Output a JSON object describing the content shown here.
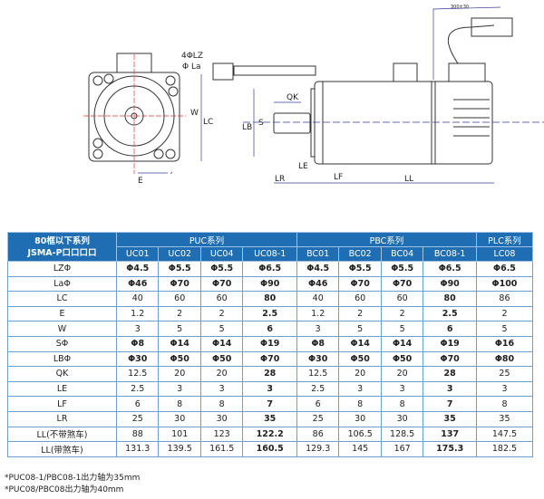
{
  "drawing": {
    "cable_length": "300±30",
    "labels": {
      "lz": "4ΦLZ",
      "la": "Φ La",
      "w": "W",
      "lc": "LC",
      "e": "E",
      "qk": "QK",
      "lb": "LB",
      "s": "S",
      "le": "LE",
      "lr": "LR",
      "lf": "LF",
      "ll": "LL"
    }
  },
  "table": {
    "corner": [
      "80框以下系列",
      "JSMA-P口口口口"
    ],
    "groups": [
      {
        "label": "PUC系列"
      },
      {
        "label": "PBC系列"
      },
      {
        "label": "PLC系列"
      }
    ],
    "models": [
      "UC01",
      "UC02",
      "UC04",
      "UC08-1",
      "BC01",
      "BC02",
      "BC04",
      "BC08-1",
      "LC08"
    ],
    "rows": [
      {
        "label": "LZΦ",
        "values": [
          "Φ4.5",
          "Φ5.5",
          "Φ5.5",
          "Φ6.5",
          "Φ4.5",
          "Φ5.5",
          "Φ5.5",
          "Φ6.5",
          "Φ6.5"
        ]
      },
      {
        "label": "LaΦ",
        "values": [
          "Φ46",
          "Φ70",
          "Φ70",
          "Φ90",
          "Φ46",
          "Φ70",
          "Φ70",
          "Φ90",
          "Φ100"
        ]
      },
      {
        "label": "LC",
        "values": [
          "40",
          "60",
          "60",
          "80",
          "40",
          "60",
          "60",
          "80",
          "86"
        ]
      },
      {
        "label": "E",
        "values": [
          "1.2",
          "2",
          "2",
          "2.5",
          "1.2",
          "2",
          "2",
          "2.5",
          "2"
        ]
      },
      {
        "label": "W",
        "values": [
          "3",
          "5",
          "5",
          "6",
          "3",
          "5",
          "5",
          "6",
          "5"
        ]
      },
      {
        "label": "SΦ",
        "values": [
          "Φ8",
          "Φ14",
          "Φ14",
          "Φ19",
          "Φ8",
          "Φ14",
          "Φ14",
          "Φ19",
          "Φ16"
        ]
      },
      {
        "label": "LBΦ",
        "values": [
          "Φ30",
          "Φ50",
          "Φ50",
          "Φ70",
          "Φ30",
          "Φ50",
          "Φ50",
          "Φ70",
          "Φ80"
        ]
      },
      {
        "label": "QK",
        "values": [
          "12.5",
          "20",
          "20",
          "28",
          "12.5",
          "20",
          "20",
          "28",
          "25"
        ]
      },
      {
        "label": "LE",
        "values": [
          "2.5",
          "3",
          "3",
          "3",
          "2.5",
          "3",
          "3",
          "3",
          "3"
        ]
      },
      {
        "label": "LF",
        "values": [
          "6",
          "8",
          "8",
          "7",
          "6",
          "8",
          "8",
          "7",
          "8"
        ]
      },
      {
        "label": "LR",
        "values": [
          "25",
          "30",
          "30",
          "35",
          "25",
          "30",
          "30",
          "35",
          "35"
        ]
      },
      {
        "label": "LL(不带煞车)",
        "values": [
          "88",
          "101",
          "123",
          "122.2",
          "86",
          "106.5",
          "128.5",
          "137",
          "147.5"
        ]
      },
      {
        "label": "LL(带煞车)",
        "values": [
          "131.3",
          "139.5",
          "161.5",
          "160.5",
          "129.3",
          "145",
          "167",
          "175.3",
          "182.5"
        ]
      }
    ]
  },
  "notes": [
    "*PUC08-1/PBC08-1出力轴为35mm",
    "*PUC08/PBC08出力轴为40mm"
  ],
  "colors": {
    "header_bg": "#1f6db3",
    "border": "#6f9fcf",
    "dimension": "#3a3a9a"
  }
}
